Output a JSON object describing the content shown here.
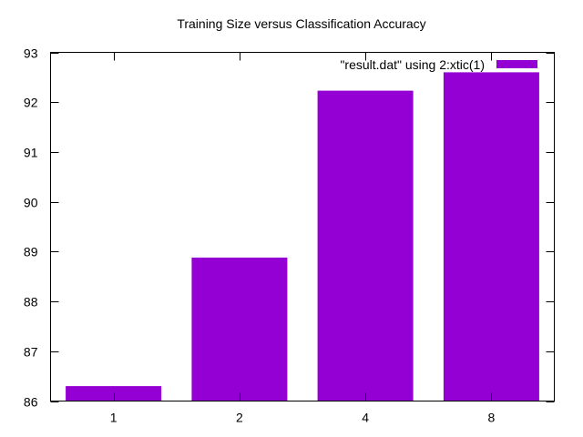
{
  "chart_data": {
    "type": "bar",
    "title": "Training Size versus Classification Accuracy",
    "xlabel": "",
    "ylabel": "",
    "categories": [
      "1",
      "2",
      "4",
      "8"
    ],
    "series": [
      {
        "name": "\"result.dat\" using 2:xtic(1)",
        "values": [
          86.3,
          88.88,
          92.23,
          92.6
        ],
        "color": "#9400d3"
      }
    ],
    "ylim": [
      86,
      93
    ],
    "yticks": [
      86,
      87,
      88,
      89,
      90,
      91,
      92,
      93
    ],
    "grid": false,
    "legend_position": "top-right"
  }
}
